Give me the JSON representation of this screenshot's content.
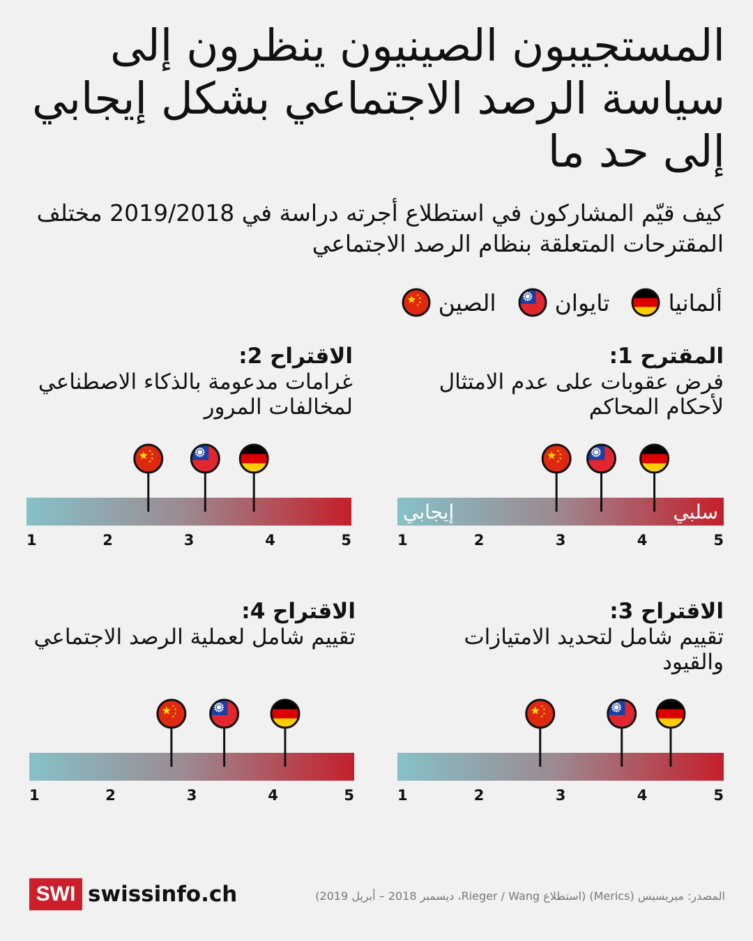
{
  "title": "المستجيبون الصينيون ينظرون إلى سياسة الرصد الاجتماعي بشكل إيجابي إلى حد ما",
  "subtitle": "كيف قيّم المشاركون في استطلاع أجرته دراسة في 2019/2018 مختلف المقترحات المتعلقة بنظام الرصد الاجتماعي",
  "legend": [
    {
      "key": "china",
      "label": "الصين",
      "icon": "china-flag-icon"
    },
    {
      "key": "taiwan",
      "label": "تايوان",
      "icon": "taiwan-flag-icon"
    },
    {
      "key": "germany",
      "label": "ألمانيا",
      "icon": "germany-flag-icon"
    }
  ],
  "colors": {
    "positive": "#86c1c7",
    "negative": "#c41f2b",
    "brand": "#cc1f2b"
  },
  "chart_data": [
    {
      "type": "scatter",
      "label": "المقترح 1:",
      "text": "فرض عقوبات على عدم الامتثال لأحكام المحاكم",
      "x_ticks": [
        1,
        2,
        3,
        4,
        5
      ],
      "xlim": [
        1,
        5
      ],
      "positive_label": "إيجابي",
      "negative_label": "سلبي",
      "values": {
        "china": 2.95,
        "taiwan": 3.5,
        "germany": 4.15
      }
    },
    {
      "type": "scatter",
      "label": "الاقتراح 2:",
      "text": "غرامات مدعومة بالذكاء الاصطناعي لمخالفات المرور",
      "x_ticks": [
        1,
        2,
        3,
        4,
        5
      ],
      "xlim": [
        1,
        5
      ],
      "values": {
        "china": 2.5,
        "taiwan": 3.2,
        "germany": 3.8
      }
    },
    {
      "type": "scatter",
      "label": "الاقتراح 3:",
      "text": "تقييم شامل لتحديد الامتيازات والقيود",
      "x_ticks": [
        1,
        2,
        3,
        4,
        5
      ],
      "xlim": [
        1,
        5
      ],
      "values": {
        "china": 2.75,
        "taiwan": 3.75,
        "germany": 4.35
      }
    },
    {
      "type": "scatter",
      "label": "الاقتراح 4:",
      "text": "تقييم شامل لعملية الرصد الاجتماعي",
      "x_ticks": [
        1,
        2,
        3,
        4,
        5
      ],
      "xlim": [
        1,
        5
      ],
      "values": {
        "china": 2.75,
        "taiwan": 3.4,
        "germany": 4.15
      }
    }
  ],
  "footer": {
    "logo": "SWI",
    "site": "swissinfo.ch",
    "source": "المصدر: ميريسيس (Merics) (استطلاع Rieger / Wang، ديسمبر 2018 – أبريل 2019)"
  }
}
